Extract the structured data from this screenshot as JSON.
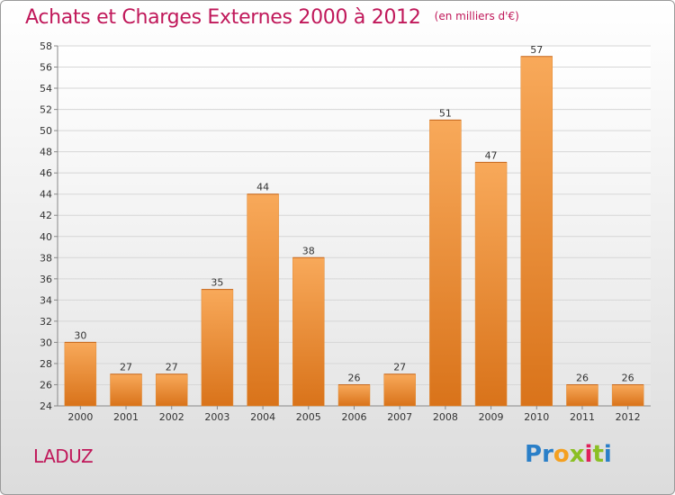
{
  "header": {
    "title": "Achats et Charges Externes 2000 à 2012",
    "subtitle": "(en milliers d'€)"
  },
  "footer": {
    "commune": "LADUZ",
    "logo_letters": [
      {
        "char": "P",
        "color": "#2a7fc8"
      },
      {
        "char": "r",
        "color": "#2a7fc8"
      },
      {
        "char": "o",
        "color": "#f4a020"
      },
      {
        "char": "x",
        "color": "#8bbf24"
      },
      {
        "char": "i",
        "color": "#e0205a"
      },
      {
        "char": "t",
        "color": "#8bbf24"
      },
      {
        "char": "i",
        "color": "#2a7fc8"
      }
    ]
  },
  "colors": {
    "accent": "#c0185a",
    "bar_light": "#f8a95a",
    "bar_dark": "#d9731a",
    "grid": "#d6d6d6"
  },
  "chart_data": {
    "type": "bar",
    "title": "Achats et Charges Externes 2000 à 2012",
    "subtitle": "(en milliers d'€)",
    "categories": [
      "2000",
      "2001",
      "2002",
      "2003",
      "2004",
      "2005",
      "2006",
      "2007",
      "2008",
      "2009",
      "2010",
      "2011",
      "2012"
    ],
    "values": [
      30,
      27,
      27,
      35,
      44,
      38,
      26,
      27,
      51,
      47,
      57,
      26,
      26
    ],
    "xlabel": "",
    "ylabel": "",
    "ylim": [
      24,
      58
    ],
    "yticks": [
      24,
      26,
      28,
      30,
      32,
      34,
      36,
      38,
      40,
      42,
      44,
      46,
      48,
      50,
      52,
      54,
      56,
      58
    ],
    "grid": true,
    "legend": "none"
  }
}
